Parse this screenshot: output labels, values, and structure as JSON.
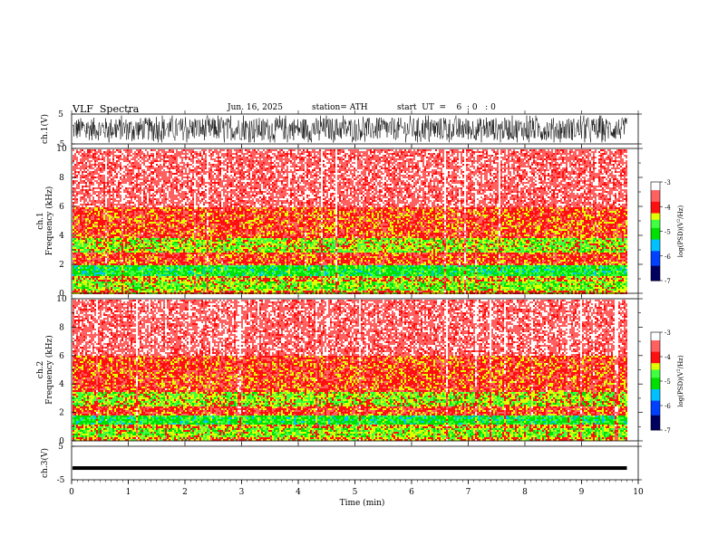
{
  "header": {
    "title": "VLF  Spectra",
    "date": "Jun. 16, 2025",
    "station": "station= ATH",
    "start_ut": "start  UT  =    6  : 0   : 0"
  },
  "chart_data": [
    {
      "type": "line",
      "panel": "ch1-waveform",
      "ylabel": "ch.1(V)",
      "ylim": [
        -5,
        5
      ],
      "yticks": [
        "5",
        "-5"
      ],
      "xlim": [
        0,
        10
      ],
      "description_values": {
        "amplitude_range": [
          -4.5,
          4.5
        ],
        "data_end_min": 9.8
      }
    },
    {
      "type": "heatmap",
      "panel": "ch1-spectrogram",
      "ylabel": "ch.1\nFrequency  (kHz)",
      "ylim": [
        0,
        10
      ],
      "yticks": [
        "0",
        "2",
        "4",
        "6",
        "8",
        "10"
      ],
      "xlim": [
        0,
        10
      ],
      "bands": [
        {
          "from_khz": 0.0,
          "to_khz": 0.3,
          "level": -4.2
        },
        {
          "from_khz": 0.3,
          "to_khz": 0.9,
          "level": -4.6
        },
        {
          "from_khz": 0.9,
          "to_khz": 1.3,
          "level": -4.3
        },
        {
          "from_khz": 1.3,
          "to_khz": 2.0,
          "level": -5.0
        },
        {
          "from_khz": 2.0,
          "to_khz": 2.9,
          "level": -4.0
        },
        {
          "from_khz": 2.9,
          "to_khz": 3.9,
          "level": -4.5
        },
        {
          "from_khz": 3.9,
          "to_khz": 6.0,
          "level": -4.0
        },
        {
          "from_khz": 6.0,
          "to_khz": 10.0,
          "level": -3.5
        }
      ],
      "colorbar": {
        "label": "log(PSD) (V²/Hz)",
        "range": [
          -7,
          -3
        ],
        "ticks": [
          "-3",
          "-4",
          "-5",
          "-6",
          "-7"
        ]
      }
    },
    {
      "type": "heatmap",
      "panel": "ch2-spectrogram",
      "ylabel": "ch.2\nFrequency  (kHz)",
      "ylim": [
        0,
        10
      ],
      "yticks": [
        "0",
        "2",
        "4",
        "6",
        "8",
        "10"
      ],
      "xlim": [
        0,
        10
      ],
      "bands": [
        {
          "from_khz": 0.0,
          "to_khz": 0.3,
          "level": -4.3
        },
        {
          "from_khz": 0.3,
          "to_khz": 0.9,
          "level": -4.6
        },
        {
          "from_khz": 0.9,
          "to_khz": 1.2,
          "level": -4.3
        },
        {
          "from_khz": 1.2,
          "to_khz": 1.9,
          "level": -5.0
        },
        {
          "from_khz": 1.9,
          "to_khz": 2.5,
          "level": -4.0
        },
        {
          "from_khz": 2.5,
          "to_khz": 3.5,
          "level": -4.5
        },
        {
          "from_khz": 3.5,
          "to_khz": 6.0,
          "level": -4.0
        },
        {
          "from_khz": 6.0,
          "to_khz": 10.0,
          "level": -3.5
        }
      ],
      "colorbar": {
        "label": "log(PSD) (V²/Hz)",
        "range": [
          -7,
          -3
        ],
        "ticks": [
          "-3",
          "-4",
          "-5",
          "-6",
          "-7"
        ]
      }
    },
    {
      "type": "line",
      "panel": "ch3-waveform",
      "ylabel": "ch.3(V)",
      "ylim": [
        -5,
        5
      ],
      "yticks": [
        "5",
        "-5"
      ],
      "xlim": [
        0,
        10
      ],
      "description_values": {
        "level_v": -1.5,
        "data_end_min": 9.8
      }
    }
  ],
  "xaxis": {
    "label": "Time  (min)",
    "ticks": [
      "0",
      "1",
      "2",
      "3",
      "4",
      "5",
      "6",
      "7",
      "8",
      "9",
      "10"
    ],
    "range": [
      0,
      10
    ]
  },
  "colorbar_labels": {
    "main": "log(PSD)(V",
    "sup": "2",
    "tail": "/Hz)"
  },
  "colors": {
    "scale": [
      "#000060",
      "#0040ff",
      "#00c0ff",
      "#00e000",
      "#40ff40",
      "#e0ff00",
      "#ff1010",
      "#ff6060",
      "#ffffff"
    ]
  }
}
